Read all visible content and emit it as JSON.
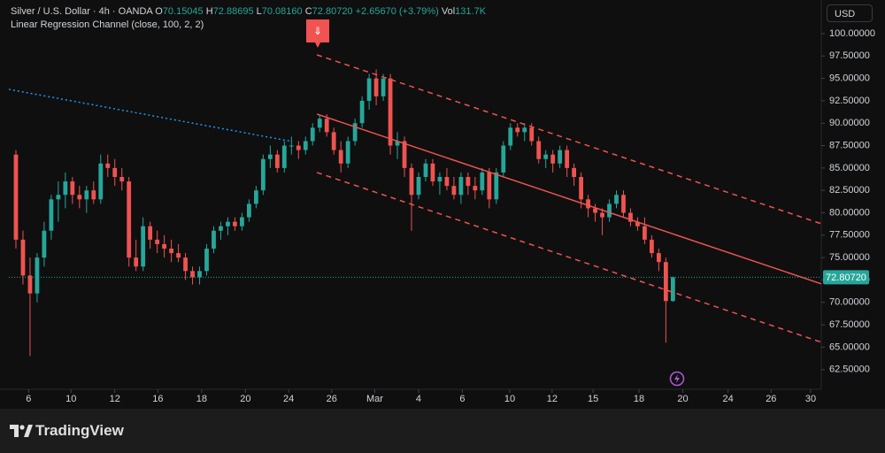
{
  "chart_data": {
    "type": "candlestick",
    "header": {
      "symbol": "Silver / U.S. Dollar · 4h · OANDA",
      "ohlc": [
        {
          "key": "O",
          "label": "70.15045"
        },
        {
          "key": "H",
          "label": "72.88695"
        },
        {
          "key": "L",
          "label": "70.08160"
        },
        {
          "key": "C",
          "label": "72.80720"
        }
      ],
      "change": "+2.65670 (+3.79%)",
      "volume_key": "Vol",
      "volume": "131.7K",
      "indicator": "Linear Regression Channel (close, 100, 2, 2)"
    },
    "currency": "USD",
    "brand": "TradingView",
    "up_color": "#26a69a",
    "down_color": "#ef5350",
    "xlim": [
      -1,
      114
    ],
    "ylim": [
      60.3,
      103.75
    ],
    "xticks": [
      {
        "value": 1.8,
        "label": "6"
      },
      {
        "value": 7.8,
        "label": "10"
      },
      {
        "value": 14.0,
        "label": "12"
      },
      {
        "value": 20.1,
        "label": "16"
      },
      {
        "value": 26.3,
        "label": "18"
      },
      {
        "value": 32.5,
        "label": "20"
      },
      {
        "value": 38.6,
        "label": "24"
      },
      {
        "value": 44.7,
        "label": "26"
      },
      {
        "value": 50.8,
        "label": "Mar"
      },
      {
        "value": 57.0,
        "label": "4"
      },
      {
        "value": 63.2,
        "label": "6"
      },
      {
        "value": 69.9,
        "label": "10"
      },
      {
        "value": 75.9,
        "label": "12"
      },
      {
        "value": 81.7,
        "label": "15"
      },
      {
        "value": 88.2,
        "label": "18"
      },
      {
        "value": 94.4,
        "label": "20"
      },
      {
        "value": 100.8,
        "label": "24"
      },
      {
        "value": 106.9,
        "label": "26"
      },
      {
        "value": 112.5,
        "label": "30"
      }
    ],
    "yticks": [
      {
        "value": 62.5,
        "label": "62.50000"
      },
      {
        "value": 65,
        "label": "65.00000"
      },
      {
        "value": 67.5,
        "label": "67.50000"
      },
      {
        "value": 70,
        "label": "70.00000"
      },
      {
        "value": 72.5,
        "label": "72.50000"
      },
      {
        "value": 75,
        "label": "75.00000"
      },
      {
        "value": 77.5,
        "label": "77.50000"
      },
      {
        "value": 80,
        "label": "80.00000"
      },
      {
        "value": 82.5,
        "label": "82.50000"
      },
      {
        "value": 85,
        "label": "85.00000"
      },
      {
        "value": 87.5,
        "label": "87.50000"
      },
      {
        "value": 90,
        "label": "90.00000"
      },
      {
        "value": 92.5,
        "label": "92.50000"
      },
      {
        "value": 95,
        "label": "95.00000"
      },
      {
        "value": 97.5,
        "label": "97.50000"
      },
      {
        "value": 100,
        "label": "100.00000"
      }
    ],
    "last_price": {
      "value": 72.8072,
      "label": "72.80720"
    },
    "x": [
      0,
      1,
      2,
      3,
      4,
      5,
      6,
      7,
      8,
      9,
      10,
      11,
      12,
      13,
      14,
      15,
      16,
      17,
      18,
      19,
      20,
      21,
      22,
      23,
      24,
      25,
      26,
      27,
      28,
      29,
      30,
      31,
      32,
      33,
      34,
      35,
      36,
      37,
      38,
      39,
      40,
      41,
      42,
      43,
      44,
      45,
      46,
      47,
      48,
      49,
      50,
      51,
      52,
      53,
      54,
      55,
      56,
      57,
      58,
      59,
      60,
      61,
      62,
      63,
      64,
      65,
      66,
      67,
      68,
      69,
      70,
      71,
      72,
      73,
      74,
      75,
      76,
      77,
      78,
      79,
      80,
      81,
      82,
      83,
      84,
      85,
      86,
      87,
      88,
      89,
      90,
      91,
      92,
      93
    ],
    "open": [
      86.5,
      77,
      73,
      71,
      75,
      78,
      81.5,
      82,
      83.5,
      82,
      81.5,
      82.5,
      81.5,
      85.5,
      85,
      84,
      83.5,
      75,
      74,
      78.5,
      77,
      76.5,
      76,
      75.5,
      75,
      73.5,
      72.8,
      73.5,
      76,
      78,
      78.5,
      79,
      78.5,
      79.5,
      81,
      82.5,
      86,
      86.5,
      85,
      87.5,
      87.5,
      87,
      88,
      89.5,
      90.5,
      89,
      87,
      85.5,
      88,
      90,
      92.5,
      95,
      93,
      95,
      87.5,
      88,
      85,
      82,
      84,
      85.5,
      83.5,
      84,
      83,
      82,
      84,
      83,
      82.5,
      84.5,
      81.5,
      84.5,
      87.5,
      89.5,
      89,
      89.5,
      88,
      86,
      86.5,
      85.5,
      87,
      85,
      84,
      81.5,
      80.5,
      80,
      79.5,
      81,
      82,
      80,
      79,
      78.5,
      77,
      75.5,
      74.5,
      70.15045
    ],
    "high": [
      87,
      78,
      75,
      75.5,
      79,
      82,
      83.5,
      84.5,
      84,
      83,
      83,
      83.5,
      86.5,
      86.5,
      86,
      85,
      84,
      77,
      79.5,
      79,
      78,
      77.5,
      77,
      76.5,
      75.5,
      74,
      74,
      76.5,
      78.5,
      79,
      79.5,
      79.5,
      80,
      81.5,
      83,
      86.5,
      87.5,
      87,
      88,
      88.5,
      88,
      88.5,
      90,
      91,
      91,
      89.5,
      88,
      88.5,
      90.5,
      93,
      95.5,
      96,
      95.5,
      95.5,
      89,
      88.5,
      85.5,
      84.5,
      86,
      86,
      84.5,
      85,
      84,
      84.5,
      84.5,
      84,
      85,
      85,
      85,
      88,
      90,
      90,
      90,
      90,
      88.5,
      87,
      87,
      87.5,
      87.5,
      85.5,
      84.5,
      82,
      81,
      80.5,
      81.5,
      82.5,
      82.5,
      80.5,
      79.5,
      79.5,
      77.5,
      76,
      75,
      72.88695
    ],
    "low": [
      76,
      72,
      64,
      70,
      74,
      77,
      79,
      80.5,
      81,
      80.5,
      80,
      81,
      81,
      84,
      83,
      82.5,
      74,
      73.5,
      73.5,
      76,
      75.5,
      75,
      74.5,
      74.5,
      72.5,
      72,
      72,
      73,
      75.5,
      77,
      77.5,
      78,
      78,
      79,
      80.5,
      82,
      85,
      84.5,
      84.5,
      86.5,
      86,
      86.5,
      87.5,
      89,
      88.5,
      86.5,
      84.5,
      85,
      87.5,
      89.5,
      91.5,
      92,
      92.5,
      86.5,
      86,
      84,
      78,
      81.5,
      83.5,
      83,
      82,
      82.5,
      81.5,
      81,
      82,
      81.5,
      82,
      80.5,
      81,
      84,
      87,
      88.5,
      88,
      87.5,
      85.5,
      85,
      84.5,
      85,
      84,
      83,
      80.5,
      79.5,
      79,
      77.5,
      79,
      80.5,
      79.5,
      78.5,
      78,
      76.5,
      75,
      73.5,
      65.5,
      70.0816
    ],
    "close": [
      77,
      73,
      71,
      75,
      78,
      81.5,
      82,
      83.5,
      82,
      81.5,
      82.5,
      81.5,
      85.5,
      85,
      84,
      83.5,
      75,
      74,
      78.5,
      77,
      76.5,
      76,
      75.5,
      75,
      73.5,
      72.8,
      73.5,
      76,
      78,
      78.5,
      79,
      78.5,
      79.5,
      81,
      82.5,
      86,
      86.5,
      85,
      87.5,
      87.5,
      87,
      88,
      89.5,
      90.5,
      89,
      87,
      85.5,
      88,
      90,
      92.5,
      95,
      93,
      95,
      87.5,
      88,
      85,
      82,
      84,
      85.5,
      83.5,
      84,
      83,
      82,
      84,
      83,
      82.5,
      84.5,
      81.5,
      84.5,
      87.5,
      89.5,
      89,
      89.5,
      88,
      86,
      86.5,
      85.5,
      87,
      85,
      84,
      81.5,
      80.5,
      80,
      79.5,
      81,
      82,
      80,
      79,
      78.5,
      77,
      75.5,
      74.5,
      70.15045,
      72.8072
    ],
    "regression": {
      "color": "#f05350",
      "x": [
        42.6,
        114
      ],
      "center": [
        91.02,
        72.07
      ],
      "upper": [
        97.63,
        78.78
      ],
      "lower": [
        84.5,
        65.56
      ]
    },
    "extension": {
      "color": "#2196f3",
      "x": [
        -1,
        39.1
      ],
      "values": [
        93.78,
        87.96
      ]
    }
  }
}
